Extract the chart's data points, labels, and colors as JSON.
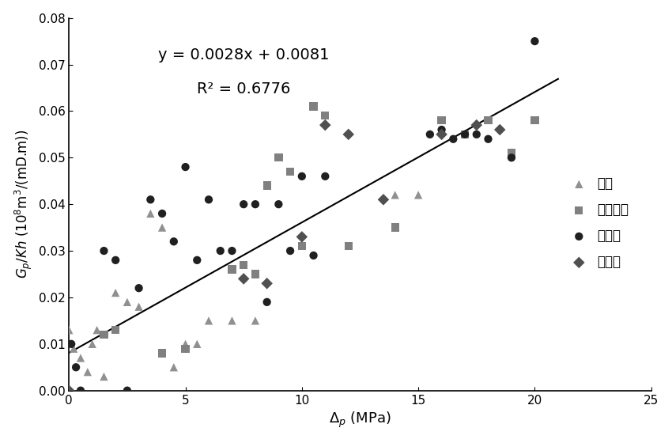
{
  "title": "",
  "xlabel_part1": "$\\Delta_p$",
  "xlabel_part2": " (MPa)",
  "ylabel": "$G_p/Kh$ ($10^8$m$^3$/(mD.m))",
  "xlim": [
    0,
    25
  ],
  "ylim": [
    0,
    0.08
  ],
  "equation": "y = 0.0028x + 0.0081",
  "r2": "R² = 0.6776",
  "slope": 0.0028,
  "intercept": 0.0081,
  "line_xstart": 0.0,
  "line_xend": 21.0,
  "datasets": [
    {
      "name": "延长",
      "x": [
        0.0,
        0.2,
        0.5,
        0.8,
        1.0,
        1.2,
        1.5,
        2.0,
        2.5,
        3.0,
        3.5,
        4.0,
        4.5,
        5.0,
        5.5,
        6.0,
        7.0,
        8.0,
        14.0,
        15.0
      ],
      "y": [
        0.013,
        0.009,
        0.007,
        0.004,
        0.01,
        0.013,
        0.003,
        0.021,
        0.019,
        0.018,
        0.038,
        0.035,
        0.005,
        0.01,
        0.01,
        0.015,
        0.015,
        0.015,
        0.042,
        0.042
      ],
      "color": "#909090",
      "marker": "^",
      "size": 55
    },
    {
      "name": "合川须二",
      "x": [
        1.5,
        2.0,
        4.0,
        5.0,
        7.0,
        7.5,
        8.0,
        8.5,
        9.0,
        9.5,
        10.0,
        10.5,
        11.0,
        12.0,
        14.0,
        16.0,
        17.0,
        18.0,
        19.0,
        20.0
      ],
      "y": [
        0.012,
        0.013,
        0.008,
        0.009,
        0.026,
        0.027,
        0.025,
        0.044,
        0.05,
        0.047,
        0.031,
        0.061,
        0.059,
        0.031,
        0.035,
        0.058,
        0.055,
        0.058,
        0.051,
        0.058
      ],
      "color": "#808080",
      "marker": "s",
      "size": 55
    },
    {
      "name": "苏里格",
      "x": [
        0.1,
        0.3,
        0.5,
        1.5,
        2.0,
        2.5,
        3.0,
        3.5,
        4.0,
        4.5,
        5.0,
        5.5,
        6.0,
        6.5,
        7.0,
        7.5,
        8.0,
        8.5,
        9.0,
        9.5,
        10.0,
        10.5,
        11.0,
        15.5,
        16.0,
        16.5,
        17.0,
        17.5,
        18.0,
        19.0,
        20.0
      ],
      "y": [
        0.01,
        0.005,
        0.0,
        0.03,
        0.028,
        0.0,
        0.022,
        0.041,
        0.038,
        0.032,
        0.048,
        0.028,
        0.041,
        0.03,
        0.03,
        0.04,
        0.04,
        0.019,
        0.04,
        0.03,
        0.046,
        0.029,
        0.046,
        0.055,
        0.056,
        0.054,
        0.055,
        0.055,
        0.054,
        0.05,
        0.075
      ],
      "color": "#202020",
      "marker": "o",
      "size": 55
    },
    {
      "name": "大牛地",
      "x": [
        0.0,
        7.5,
        8.5,
        10.0,
        11.0,
        12.0,
        13.5,
        16.0,
        17.5,
        18.5
      ],
      "y": [
        0.0,
        0.024,
        0.023,
        0.033,
        0.057,
        0.055,
        0.041,
        0.055,
        0.057,
        0.056
      ],
      "color": "#505050",
      "marker": "D",
      "size": 55
    }
  ],
  "background_color": "#ffffff",
  "line_color": "#000000"
}
